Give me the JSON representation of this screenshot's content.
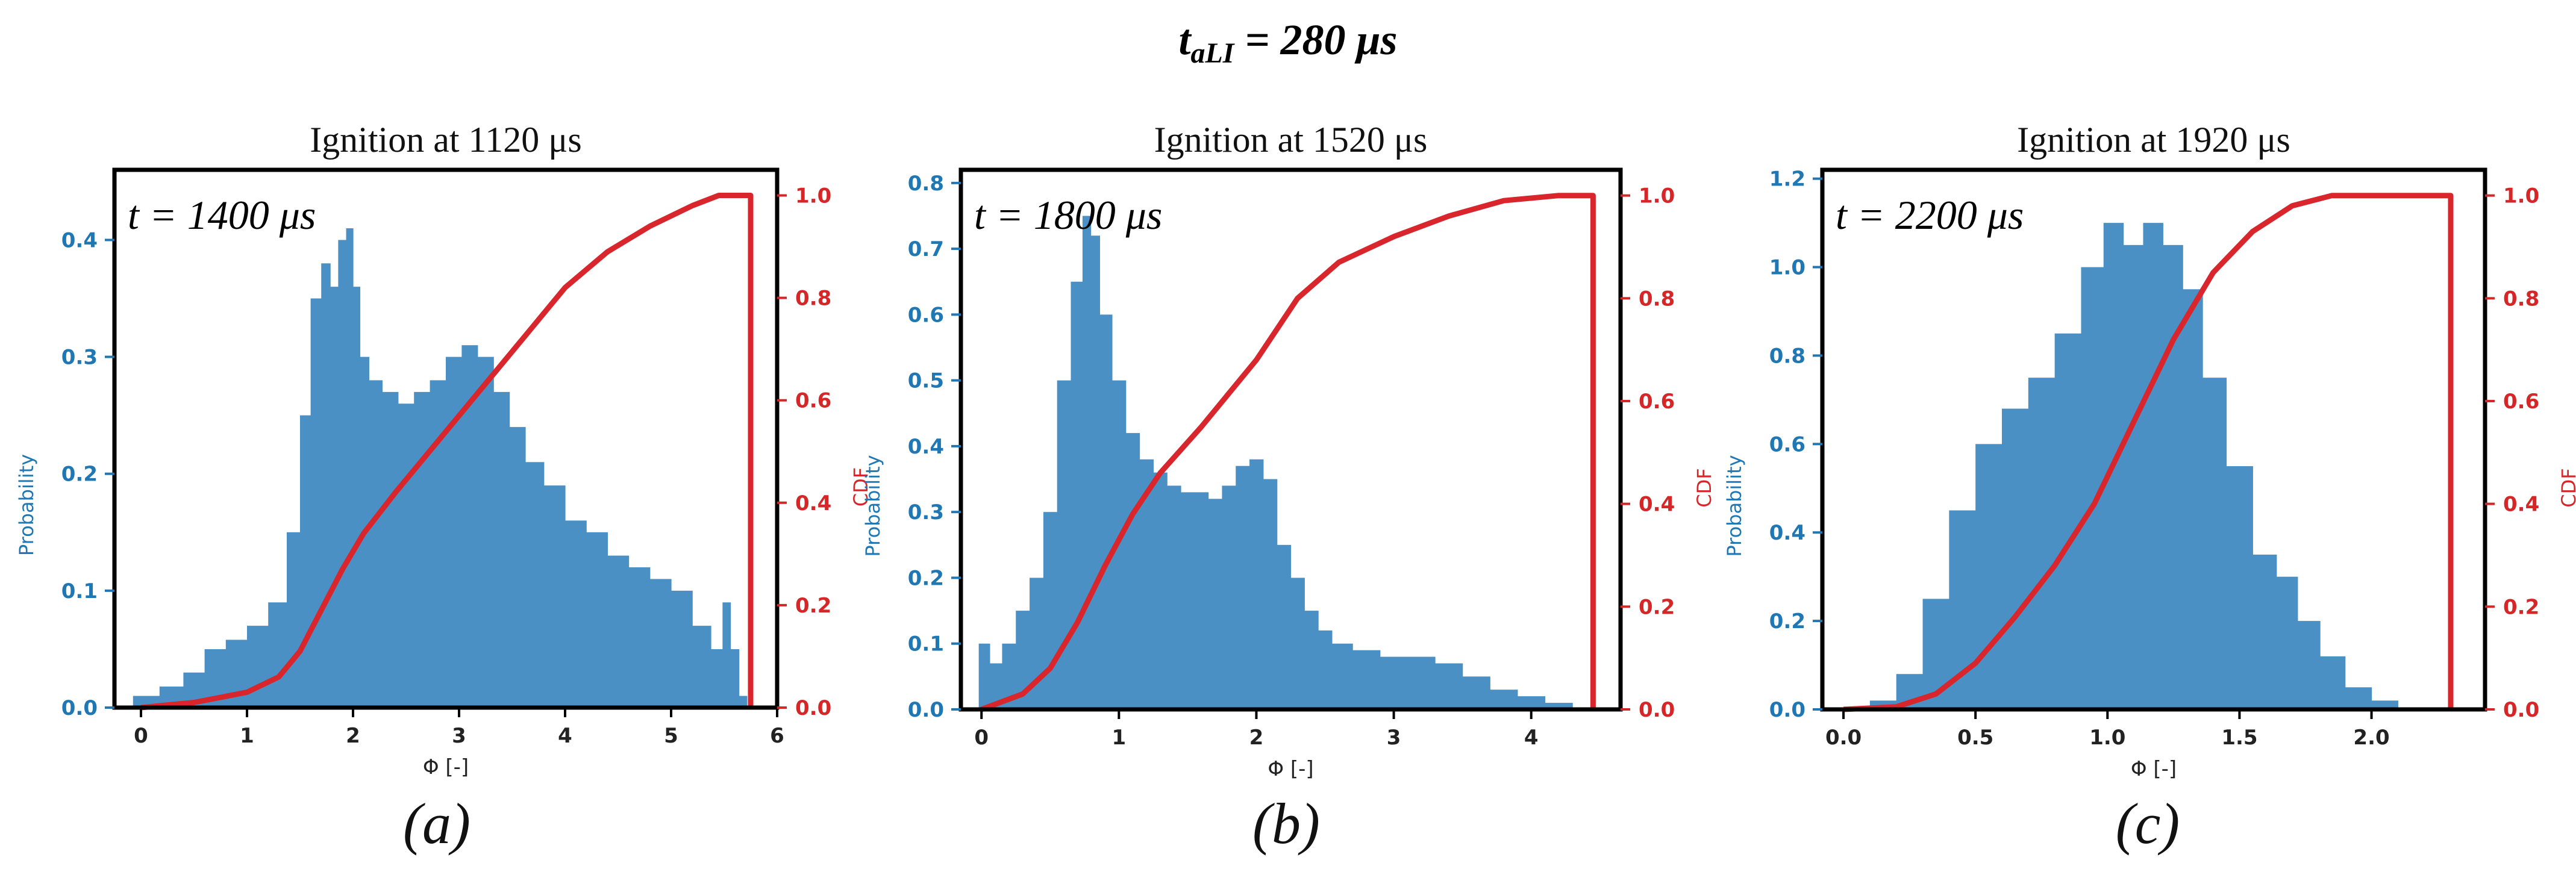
{
  "figure": {
    "suptitle_main": "t",
    "suptitle_sub": "aLI",
    "suptitle_value": " = 280 μs",
    "colors": {
      "hist": "#4a90c4",
      "cdf": "#d9262c",
      "left_axis": "#1f77b4",
      "right_axis": "#d62728"
    }
  },
  "chart_data": [
    {
      "type": "bar",
      "panel_label": "(a)",
      "title": "Ignition at 1120 μs",
      "annotation": "t = 1400 μs",
      "xlabel": "Φ [-]",
      "ylabel": "Probability",
      "y2label": "CDF",
      "xlim": [
        -0.25,
        6.0
      ],
      "ylim": [
        0,
        0.46
      ],
      "y2lim": [
        0,
        1.05
      ],
      "xticks": [
        0,
        1,
        2,
        3,
        4,
        5,
        6
      ],
      "yticks": [
        0.0,
        0.1,
        0.2,
        0.3,
        0.4
      ],
      "y2ticks": [
        0.0,
        0.2,
        0.4,
        0.6,
        0.8,
        1.0
      ],
      "hist_x": [
        0.05,
        0.3,
        0.5,
        0.7,
        0.9,
        1.1,
        1.3,
        1.45,
        1.55,
        1.65,
        1.75,
        1.82,
        1.9,
        1.97,
        2.03,
        2.1,
        2.2,
        2.35,
        2.5,
        2.65,
        2.8,
        2.95,
        3.1,
        3.25,
        3.4,
        3.55,
        3.7,
        3.9,
        4.1,
        4.3,
        4.5,
        4.7,
        4.9,
        5.1,
        5.3,
        5.45,
        5.52,
        5.6,
        5.68,
        5.75
      ],
      "hist_y": [
        0.01,
        0.018,
        0.03,
        0.05,
        0.058,
        0.07,
        0.09,
        0.15,
        0.25,
        0.35,
        0.38,
        0.36,
        0.4,
        0.41,
        0.36,
        0.3,
        0.28,
        0.27,
        0.26,
        0.27,
        0.28,
        0.3,
        0.31,
        0.3,
        0.27,
        0.24,
        0.21,
        0.19,
        0.16,
        0.15,
        0.13,
        0.12,
        0.11,
        0.1,
        0.07,
        0.05,
        0.09,
        0.05,
        0.01,
        0.0
      ],
      "series": [
        {
          "name": "Probability",
          "x": [],
          "values": []
        },
        {
          "name": "CDF",
          "x": [
            0,
            0.5,
            1.0,
            1.3,
            1.5,
            1.7,
            1.9,
            2.1,
            2.4,
            2.8,
            3.2,
            3.6,
            4.0,
            4.4,
            4.8,
            5.2,
            5.45,
            5.55,
            5.75,
            5.75
          ],
          "values": [
            0,
            0.01,
            0.03,
            0.06,
            0.11,
            0.19,
            0.27,
            0.34,
            0.42,
            0.52,
            0.62,
            0.72,
            0.82,
            0.89,
            0.94,
            0.98,
            1.0,
            1.0,
            1.0,
            0.0
          ]
        }
      ]
    },
    {
      "type": "bar",
      "panel_label": "(b)",
      "title": "Ignition at 1520 μs",
      "annotation": "t = 1800 μs",
      "xlabel": "Φ [-]",
      "ylabel": "Probability",
      "y2label": "CDF",
      "xlim": [
        -0.15,
        4.65
      ],
      "ylim": [
        0,
        0.82
      ],
      "y2lim": [
        0,
        1.05
      ],
      "xticks": [
        0,
        1,
        2,
        3,
        4
      ],
      "yticks": [
        0.0,
        0.1,
        0.2,
        0.3,
        0.4,
        0.5,
        0.6,
        0.7,
        0.8
      ],
      "y2ticks": [
        0.0,
        0.2,
        0.4,
        0.6,
        0.8,
        1.0
      ],
      "hist_x": [
        0.02,
        0.1,
        0.2,
        0.3,
        0.4,
        0.5,
        0.6,
        0.7,
        0.77,
        0.82,
        0.9,
        1.0,
        1.1,
        1.2,
        1.3,
        1.4,
        1.5,
        1.6,
        1.7,
        1.8,
        1.9,
        2.0,
        2.1,
        2.2,
        2.3,
        2.4,
        2.5,
        2.6,
        2.8,
        3.0,
        3.2,
        3.4,
        3.6,
        3.8,
        4.0,
        4.2,
        4.4
      ],
      "hist_y": [
        0.1,
        0.07,
        0.1,
        0.15,
        0.2,
        0.3,
        0.5,
        0.65,
        0.75,
        0.72,
        0.6,
        0.5,
        0.42,
        0.38,
        0.36,
        0.34,
        0.33,
        0.33,
        0.32,
        0.34,
        0.37,
        0.38,
        0.35,
        0.25,
        0.2,
        0.15,
        0.12,
        0.1,
        0.09,
        0.08,
        0.08,
        0.07,
        0.05,
        0.03,
        0.02,
        0.01,
        0.0
      ],
      "series": [
        {
          "name": "Probability",
          "x": [],
          "values": []
        },
        {
          "name": "CDF",
          "x": [
            0,
            0.3,
            0.5,
            0.7,
            0.9,
            1.1,
            1.3,
            1.6,
            2.0,
            2.3,
            2.6,
            3.0,
            3.4,
            3.8,
            4.2,
            4.45,
            4.45
          ],
          "values": [
            0,
            0.03,
            0.08,
            0.17,
            0.28,
            0.38,
            0.46,
            0.55,
            0.68,
            0.8,
            0.87,
            0.92,
            0.96,
            0.99,
            1.0,
            1.0,
            0.0
          ]
        }
      ]
    },
    {
      "type": "bar",
      "panel_label": "(c)",
      "title": "Ignition at 1920 μs",
      "annotation": "t = 2200 μs",
      "xlabel": "Φ [-]",
      "ylabel": "Probability",
      "y2label": "CDF",
      "xlim": [
        -0.08,
        2.43
      ],
      "ylim": [
        0,
        1.22
      ],
      "y2lim": [
        0,
        1.05
      ],
      "xticks": [
        0.0,
        0.5,
        1.0,
        1.5,
        2.0
      ],
      "yticks": [
        0.0,
        0.2,
        0.4,
        0.6,
        0.8,
        1.0,
        1.2
      ],
      "y2ticks": [
        0.0,
        0.2,
        0.4,
        0.6,
        0.8,
        1.0
      ],
      "hist_x": [
        0.05,
        0.15,
        0.25,
        0.35,
        0.45,
        0.55,
        0.65,
        0.75,
        0.85,
        0.95,
        1.02,
        1.1,
        1.17,
        1.25,
        1.32,
        1.4,
        1.5,
        1.6,
        1.68,
        1.76,
        1.85,
        1.95,
        2.05,
        2.15
      ],
      "hist_y": [
        0.005,
        0.02,
        0.08,
        0.25,
        0.45,
        0.6,
        0.68,
        0.75,
        0.85,
        1.0,
        1.1,
        1.05,
        1.1,
        1.05,
        0.95,
        0.75,
        0.55,
        0.35,
        0.3,
        0.2,
        0.12,
        0.05,
        0.02,
        0.0
      ],
      "series": [
        {
          "name": "Probability",
          "x": [],
          "values": []
        },
        {
          "name": "CDF",
          "x": [
            0,
            0.2,
            0.35,
            0.5,
            0.65,
            0.8,
            0.95,
            1.1,
            1.25,
            1.4,
            1.55,
            1.7,
            1.85,
            2.0,
            2.3,
            2.3
          ],
          "values": [
            0,
            0.005,
            0.03,
            0.09,
            0.18,
            0.28,
            0.4,
            0.56,
            0.72,
            0.85,
            0.93,
            0.98,
            1.0,
            1.0,
            1.0,
            0.0
          ]
        }
      ]
    }
  ]
}
